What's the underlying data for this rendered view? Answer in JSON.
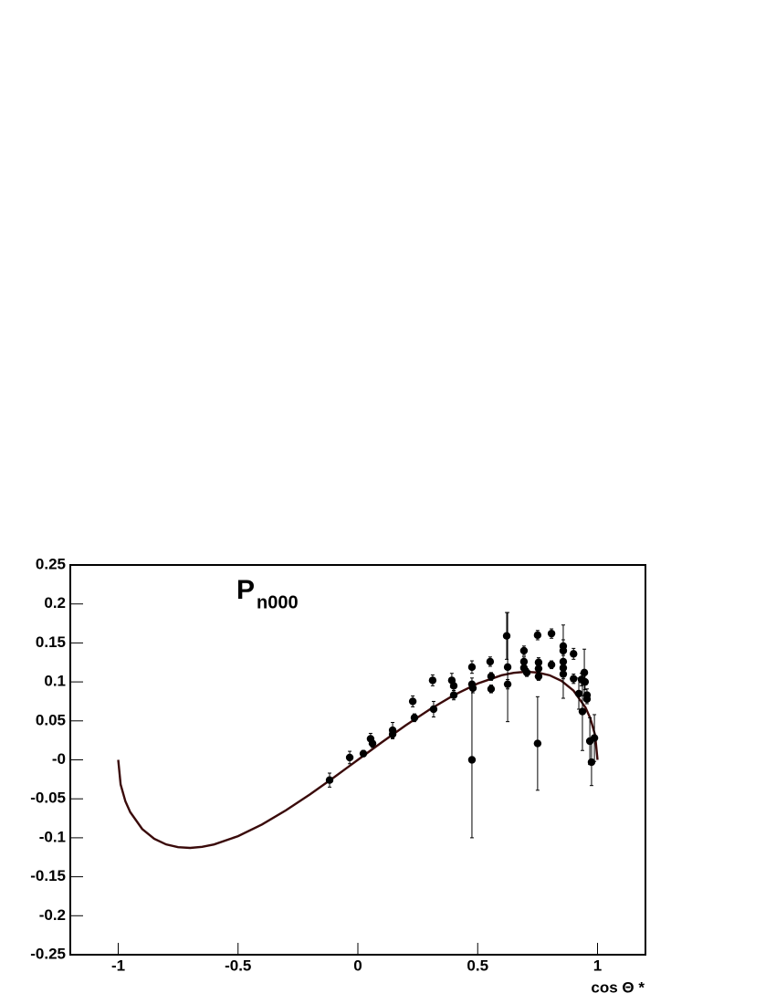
{
  "chart_data": {
    "type": "scatter",
    "annotation": {
      "text": "P",
      "subscript": "n000"
    },
    "x_label": "cos Θ *",
    "xlim": [
      -1.2,
      1.2
    ],
    "ylim": [
      -0.25,
      0.25
    ],
    "xticks": [
      -1,
      -0.5,
      0,
      0.5,
      1
    ],
    "yticks": [
      0.25,
      0.2,
      0.15,
      0.1,
      0.05,
      {
        "value": 0,
        "label": "-0"
      },
      -0.05,
      -0.1,
      -0.15,
      -0.2,
      -0.25
    ],
    "points": {
      "color": "#000000",
      "x": [
        -0.118,
        -0.034,
        0.023,
        0.053,
        0.061,
        0.145,
        0.145,
        0.229,
        0.236,
        0.312,
        0.316,
        0.392,
        0.4,
        0.4,
        0.476,
        0.476,
        0.476,
        0.48,
        0.552,
        0.556,
        0.556,
        0.621,
        0.625,
        0.625,
        0.693,
        0.693,
        0.693,
        0.705,
        0.75,
        0.754,
        0.754,
        0.754,
        0.75,
        0.808,
        0.808,
        0.857,
        0.857,
        0.857,
        0.857,
        0.857,
        0.9,
        0.9,
        0.922,
        0.933,
        0.937,
        0.945,
        0.948,
        0.956,
        0.956,
        0.968,
        0.975,
        0.987
      ],
      "values": [
        -0.026,
        0.003,
        0.008,
        0.027,
        0.021,
        0.038,
        0.033,
        0.075,
        0.054,
        0.102,
        0.065,
        0.102,
        0.095,
        0.083,
        0.119,
        0.097,
        0.0,
        0.092,
        0.126,
        0.091,
        0.107,
        0.159,
        0.119,
        0.097,
        0.14,
        0.126,
        0.118,
        0.112,
        0.16,
        0.125,
        0.117,
        0.107,
        0.021,
        0.162,
        0.122,
        0.146,
        0.14,
        0.126,
        0.118,
        0.11,
        0.136,
        0.104,
        0.085,
        0.103,
        0.062,
        0.112,
        0.1,
        0.083,
        0.078,
        0.024,
        -0.003,
        0.028
      ],
      "errors": [
        0.009,
        0.008,
        0.004,
        0.007,
        0.005,
        0.01,
        0.006,
        0.007,
        0.005,
        0.007,
        0.01,
        0.009,
        0.006,
        0.006,
        0.008,
        0.008,
        0.1,
        0.006,
        0.006,
        0.005,
        0.005,
        0.03,
        0.07,
        0.006,
        0.006,
        0.006,
        0.005,
        0.005,
        0.006,
        0.006,
        0.005,
        0.005,
        0.06,
        0.006,
        0.005,
        0.008,
        0.006,
        0.047,
        0.006,
        0.006,
        0.007,
        0.006,
        0.02,
        0.008,
        0.05,
        0.03,
        0.01,
        0.008,
        0.006,
        0.03,
        0.03,
        0.03
      ]
    },
    "curve": {
      "color": "#3a0a0a",
      "x": [
        -1,
        -0.99,
        -0.97,
        -0.95,
        -0.9,
        -0.85,
        -0.8,
        -0.75,
        -0.7,
        -0.65,
        -0.6,
        -0.5,
        -0.4,
        -0.3,
        -0.2,
        -0.1,
        0,
        0.1,
        0.2,
        0.3,
        0.4,
        0.5,
        0.6,
        0.65,
        0.7,
        0.75,
        0.8,
        0.85,
        0.9,
        0.95,
        0.97,
        0.99,
        1
      ],
      "values": [
        0,
        -0.0316,
        -0.0533,
        -0.067,
        -0.0887,
        -0.1012,
        -0.1085,
        -0.1121,
        -0.113,
        -0.1116,
        -0.1085,
        -0.0979,
        -0.0829,
        -0.0647,
        -0.0443,
        -0.0225,
        0,
        0.0225,
        0.0443,
        0.0647,
        0.0829,
        0.0979,
        0.1085,
        0.1116,
        0.113,
        0.1121,
        0.1085,
        0.1012,
        0.0887,
        0.067,
        0.0533,
        0.0316,
        0
      ]
    }
  }
}
